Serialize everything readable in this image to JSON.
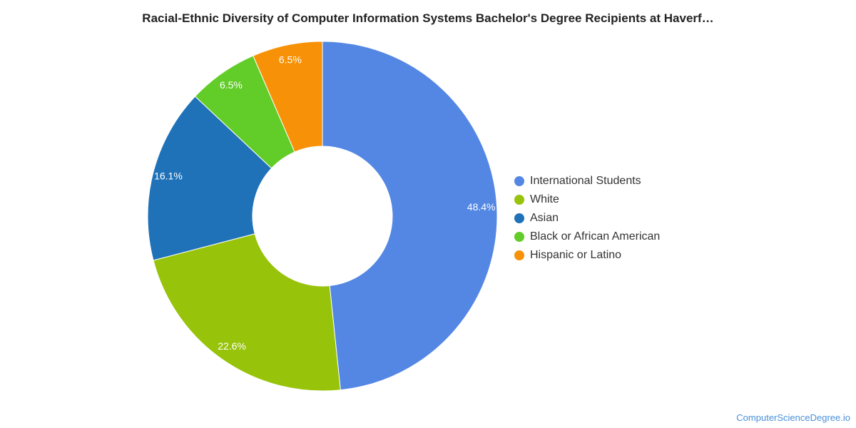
{
  "chart_data": {
    "type": "pie",
    "title": "Racial-Ethnic Diversity of Computer Information Systems Bachelor's Degree Recipients at Haverf…",
    "categories": [
      "International Students",
      "White",
      "Asian",
      "Black or African American",
      "Hispanic or Latino"
    ],
    "values": [
      48.4,
      22.6,
      16.1,
      6.5,
      6.5
    ],
    "labels": [
      "48.4%",
      "22.6%",
      "16.1%",
      "6.5%",
      "6.5%"
    ],
    "colors": [
      "#5387e3",
      "#97c30a",
      "#1f72b8",
      "#62cc28",
      "#f79208"
    ],
    "donut": true,
    "legend_position": "right"
  },
  "footer": {
    "source": "ComputerScienceDegree.io"
  }
}
